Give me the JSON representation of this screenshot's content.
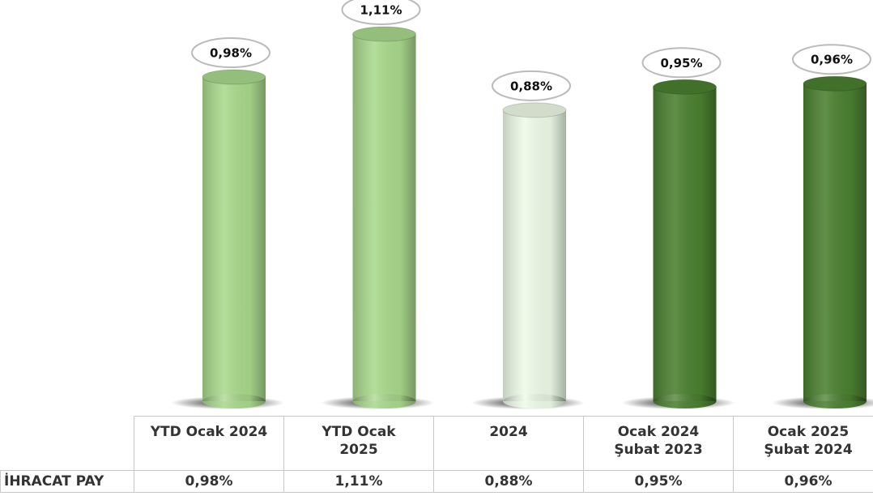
{
  "chart_data": {
    "type": "bar",
    "categories": [
      "YTD Ocak 2024",
      "YTD Ocak\n2025",
      "2024",
      "Ocak 2024\nŞubat 2023",
      "Ocak 2025\nŞubat 2024"
    ],
    "series": [
      {
        "name": "İHRACAT PAY",
        "values": [
          0.98,
          1.11,
          0.88,
          0.95,
          0.96
        ],
        "value_labels": [
          "0,98%",
          "1,11%",
          "0,88%",
          "0,95%",
          "0,96%"
        ],
        "colors": [
          "#a9d98c",
          "#a9d98c",
          "#eefbe8",
          "#4b8030",
          "#4b8030"
        ]
      }
    ]
  }
}
